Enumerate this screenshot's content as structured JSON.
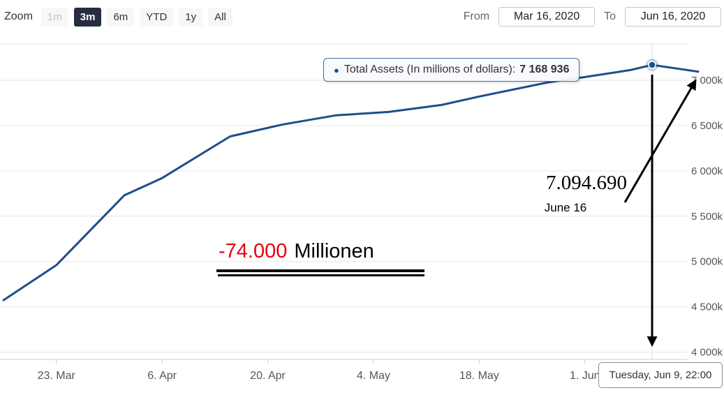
{
  "zoom": {
    "label": "Zoom",
    "buttons": [
      "1m",
      "3m",
      "6m",
      "YTD",
      "1y",
      "All"
    ],
    "selected": "3m"
  },
  "range": {
    "from_label": "From",
    "from_value": "Mar 16, 2020",
    "to_label": "To",
    "to_value": "Jun 16, 2020"
  },
  "tooltip": {
    "label": "Total Assets (In millions of dollars):",
    "value": "7 168 936"
  },
  "date_tooltip": "Tuesday, Jun 9, 22:00",
  "annotations": {
    "value": "7.094.690",
    "date": "June 16",
    "delta": "-74.000",
    "delta_unit": "Millionen"
  },
  "colors": {
    "line": "#1d4e8a",
    "selected_button_bg": "#262d40",
    "delta_red": "#e8000d",
    "grid": "#e6e6e6",
    "tooltip_border": "#4a6e9e"
  },
  "chart_data": {
    "type": "line",
    "title": "Total Assets (In millions of dollars)",
    "x_range_labels": [
      "Mar 16, 2020",
      "Jun 16, 2020"
    ],
    "x_span_days": 92,
    "ylim": [
      3920000,
      7400000
    ],
    "y_ticks": [
      "7 000k",
      "6 500k",
      "6 000k",
      "5 500k",
      "5 000k",
      "4 500k",
      "4 000k"
    ],
    "y_tick_values": [
      7000000,
      6500000,
      6000000,
      5500000,
      5000000,
      4500000,
      4000000
    ],
    "x_ticks": [
      "23. Mar",
      "6. Apr",
      "20. Apr",
      "4. May",
      "18. May",
      "1. Jun"
    ],
    "x_tick_days": [
      7,
      21,
      35,
      49,
      63,
      77
    ],
    "grid": "horizontal",
    "legend": false,
    "series": [
      {
        "name": "Total Assets (In millions of dollars)",
        "x_days": [
          0,
          7,
          16,
          21,
          30,
          37,
          44,
          51,
          58,
          63,
          72,
          77,
          83,
          85.9,
          92
        ],
        "values": [
          4574000,
          4960000,
          5730000,
          5920000,
          6380000,
          6512000,
          6612000,
          6650000,
          6727000,
          6820000,
          6974000,
          7035000,
          7112000,
          7168936,
          7094690
        ]
      }
    ],
    "highlight_point": {
      "day": 85.9,
      "value": 7168936,
      "value_label": "7 168 936",
      "date_label": "Tuesday, Jun 9, 22:00"
    },
    "annotated_point": {
      "day": 92,
      "value": 7094690,
      "value_label": "7.094.690",
      "date_label": "June 16"
    },
    "delta_annotation": "-74.000 Millionen"
  }
}
